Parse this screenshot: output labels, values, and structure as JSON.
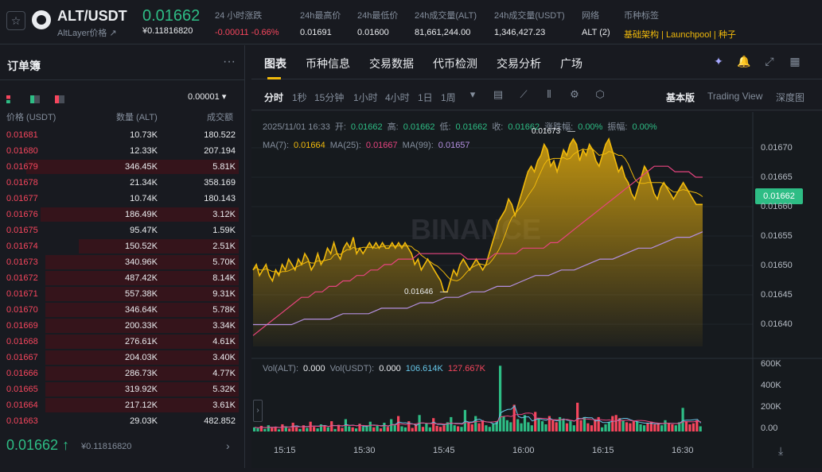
{
  "header": {
    "star_icon": "star-icon",
    "pair": "ALT/USDT",
    "pair_sub": "AltLayer价格 ↗",
    "price": "0.01662",
    "price_usd": "¥0.11816820",
    "stats": [
      {
        "label": "24 小时涨跌",
        "value": "-0.00011 -0.66%",
        "color": "red"
      },
      {
        "label": "24h最高价",
        "value": "0.01691",
        "color": ""
      },
      {
        "label": "24h最低价",
        "value": "0.01600",
        "color": ""
      },
      {
        "label": "24h成交量(ALT)",
        "value": "81,661,244.00",
        "color": ""
      },
      {
        "label": "24h成交量(USDT)",
        "value": "1,346,427.23",
        "color": ""
      },
      {
        "label": "网络",
        "value": "ALT (2)",
        "color": ""
      },
      {
        "label": "币种标签",
        "value": "基础架构 | Launchpool | 种子",
        "color": "gold"
      }
    ]
  },
  "orderbook": {
    "title": "订单簿",
    "precision": "0.00001 ▾",
    "col_price": "价格 (USDT)",
    "col_qty": "数量 (ALT)",
    "col_total": "成交额",
    "asks": [
      {
        "price": "0.01681",
        "qty": "10.73K",
        "total": "180.522",
        "depth": 0.0
      },
      {
        "price": "0.01680",
        "qty": "12.33K",
        "total": "207.194",
        "depth": 0.0
      },
      {
        "price": "0.01679",
        "qty": "346.45K",
        "total": "5.81K",
        "depth": 0.89
      },
      {
        "price": "0.01678",
        "qty": "21.34K",
        "total": "358.169",
        "depth": 0.0
      },
      {
        "price": "0.01677",
        "qty": "10.74K",
        "total": "180.143",
        "depth": 0.0
      },
      {
        "price": "0.01676",
        "qty": "186.49K",
        "total": "3.12K",
        "depth": 0.83
      },
      {
        "price": "0.01675",
        "qty": "95.47K",
        "total": "1.59K",
        "depth": 0.0
      },
      {
        "price": "0.01674",
        "qty": "150.52K",
        "total": "2.51K",
        "depth": 0.67
      },
      {
        "price": "0.01673",
        "qty": "340.96K",
        "total": "5.70K",
        "depth": 0.81
      },
      {
        "price": "0.01672",
        "qty": "487.42K",
        "total": "8.14K",
        "depth": 0.81
      },
      {
        "price": "0.01671",
        "qty": "557.38K",
        "total": "9.31K",
        "depth": 0.81
      },
      {
        "price": "0.01670",
        "qty": "346.64K",
        "total": "5.78K",
        "depth": 0.81
      },
      {
        "price": "0.01669",
        "qty": "200.33K",
        "total": "3.34K",
        "depth": 0.81
      },
      {
        "price": "0.01668",
        "qty": "276.61K",
        "total": "4.61K",
        "depth": 0.81
      },
      {
        "price": "0.01667",
        "qty": "204.03K",
        "total": "3.40K",
        "depth": 0.81
      },
      {
        "price": "0.01666",
        "qty": "286.73K",
        "total": "4.77K",
        "depth": 0.81
      },
      {
        "price": "0.01665",
        "qty": "319.92K",
        "total": "5.32K",
        "depth": 0.81
      },
      {
        "price": "0.01664",
        "qty": "217.12K",
        "total": "3.61K",
        "depth": 0.81
      },
      {
        "price": "0.01663",
        "qty": "29.03K",
        "total": "482.852",
        "depth": 0.0
      }
    ],
    "last_price": "0.01662",
    "last_sub": "¥0.11816820"
  },
  "tabs": [
    "图表",
    "币种信息",
    "交易数据",
    "代币检测",
    "交易分析",
    "广场"
  ],
  "toolbar": {
    "intervals": [
      "分时",
      "1秒",
      "15分钟",
      "1小时",
      "4小时",
      "1日",
      "1周"
    ],
    "views": [
      "基本版",
      "Trading View",
      "深度图"
    ]
  },
  "chart_info": {
    "date": "2025/11/01 16:33",
    "open_label": "开:",
    "open": "0.01662",
    "high_label": "高:",
    "high": "0.01662",
    "low_label": "低:",
    "low": "0.01662",
    "close_label": "收:",
    "close": "0.01662",
    "chg_label": "涨跌幅:",
    "chg": "0.00%",
    "amp_label": "振幅:",
    "amp": "0.00%",
    "ma7_label": "MA(7):",
    "ma7": "0.01664",
    "ma25_label": "MA(25):",
    "ma25": "0.01667",
    "ma99_label": "MA(99):",
    "ma99": "0.01657",
    "vol_alt_label": "Vol(ALT):",
    "vol_alt": "0.000",
    "vol_usdt_label": "Vol(USDT):",
    "vol_usdt": "0.000",
    "vol_ma1": "106.614K",
    "vol_ma2": "127.667K",
    "high_marker": "0.01673",
    "low_marker": "0.01646",
    "current": "0.01662",
    "watermark": "BINANCE"
  },
  "colors": {
    "up": "#2ebd85",
    "down": "#f6465d",
    "gold": "#f0b90b",
    "ma7": "#f0b90b",
    "ma25": "#e6447f",
    "ma99": "#b38fe0"
  },
  "chart_data": {
    "type": "area",
    "y_ticks": [
      "0.01670",
      "0.01665",
      "0.01660",
      "0.01655",
      "0.01650",
      "0.01645",
      "0.01640"
    ],
    "ylim": [
      0.01636,
      0.01675
    ],
    "x_ticks": [
      "15:15",
      "15:30",
      "15:45",
      "16:00",
      "16:15",
      "16:30"
    ],
    "vol_ticks": [
      "600K",
      "400K",
      "200K",
      "0.00"
    ],
    "price": [
      0.0165,
      0.01651,
      0.01649,
      0.0165,
      0.01651,
      0.01649,
      0.01648,
      0.0165,
      0.01649,
      0.01651,
      0.0165,
      0.01652,
      0.01651,
      0.0165,
      0.01652,
      0.01651,
      0.01653,
      0.01652,
      0.0165,
      0.01651,
      0.01653,
      0.01651,
      0.01652,
      0.01654,
      0.01653,
      0.01655,
      0.01653,
      0.01652,
      0.01654,
      0.01655,
      0.01654,
      0.01656,
      0.01653,
      0.01654,
      0.01653,
      0.01654,
      0.01655,
      0.01654,
      0.01655,
      0.01654,
      0.01655,
      0.01654,
      0.01654,
      0.01655,
      0.01654,
      0.01655,
      0.01654,
      0.01655,
      0.01654,
      0.01653,
      0.01651,
      0.01652,
      0.0165,
      0.01651,
      0.01652,
      0.01651,
      0.0165,
      0.01649,
      0.01648,
      0.01646,
      0.01646,
      0.01648,
      0.0165,
      0.01649,
      0.01651,
      0.01652,
      0.01651,
      0.0165,
      0.01651,
      0.01652,
      0.01651,
      0.0165,
      0.01651,
      0.01653,
      0.01655,
      0.01657,
      0.01659,
      0.0166,
      0.01661,
      0.01663,
      0.01662,
      0.0166,
      0.01662,
      0.01664,
      0.01666,
      0.01668,
      0.01669,
      0.01668,
      0.0167,
      0.01671,
      0.01673,
      0.01672,
      0.01669,
      0.0167,
      0.01668,
      0.0167,
      0.01672,
      0.01671,
      0.01673,
      0.01674,
      0.01673,
      0.0167,
      0.01672,
      0.01671,
      0.01673,
      0.01672,
      0.0167,
      0.01669,
      0.01671,
      0.01673,
      0.01674,
      0.01672,
      0.0167,
      0.01668,
      0.01669,
      0.01667,
      0.01666,
      0.01664,
      0.01663,
      0.01665,
      0.01667,
      0.01669,
      0.01668,
      0.01666,
      0.01664,
      0.01663,
      0.01665,
      0.01666,
      0.01665,
      0.01664,
      0.01663,
      0.01664,
      0.01665,
      0.01666,
      0.01665,
      0.01664,
      0.01663,
      0.01662,
      0.01662,
      0.01662
    ],
    "ma25": [
      0.01638,
      0.01639,
      0.0164,
      0.01641,
      0.01642,
      0.01643,
      0.01644,
      0.01645,
      0.01645,
      0.01646,
      0.01646,
      0.01647,
      0.01647,
      0.01648,
      0.01648,
      0.01649,
      0.01649,
      0.0165,
      0.0165,
      0.01651,
      0.01651,
      0.01652,
      0.01652,
      0.01652,
      0.01653,
      0.01653,
      0.01653,
      0.01653,
      0.01653,
      0.01653,
      0.01653,
      0.01652,
      0.01652,
      0.01652,
      0.01652,
      0.01653,
      0.01653,
      0.01653,
      0.01653,
      0.01654,
      0.01654,
      0.01654,
      0.01654,
      0.01655,
      0.01655,
      0.01656,
      0.01657,
      0.01658,
      0.01659,
      0.0166,
      0.01661,
      0.01662,
      0.01663,
      0.01664,
      0.01665,
      0.01666,
      0.01667,
      0.01668,
      0.01669,
      0.01669,
      0.01669,
      0.01668,
      0.01668,
      0.01668,
      0.01667,
      0.01667
    ],
    "ma99": [
      0.0164,
      0.0164,
      0.0164,
      0.0164,
      0.01641,
      0.01641,
      0.01641,
      0.01642,
      0.01642,
      0.01642,
      0.01643,
      0.01643,
      0.01643,
      0.01644,
      0.01644,
      0.01645,
      0.01645,
      0.01646,
      0.01646,
      0.01647,
      0.01647,
      0.01648,
      0.01649,
      0.01649,
      0.0165,
      0.0165,
      0.01651,
      0.01652,
      0.01652,
      0.01653,
      0.01654,
      0.01654,
      0.01655,
      0.01656,
      0.01656,
      0.01657
    ],
    "volume": [
      40,
      30,
      55,
      25,
      60,
      35,
      45,
      20,
      70,
      50,
      30,
      85,
      40,
      25,
      60,
      35,
      95,
      45,
      30,
      70,
      55,
      40,
      100,
      25,
      65,
      35,
      120,
      50,
      40,
      30,
      75,
      45,
      60,
      95,
      40,
      55,
      30,
      85,
      45,
      120,
      60,
      150,
      50,
      40,
      100,
      35,
      70,
      160,
      45,
      80,
      40,
      130,
      55,
      45,
      60,
      90,
      140,
      60,
      50,
      45,
      210,
      90,
      70,
      150,
      80,
      110,
      60,
      45,
      75,
      95,
      640,
      150,
      110,
      90,
      260,
      120,
      80,
      160,
      90,
      60,
      190,
      130,
      100,
      70,
      150,
      110,
      90,
      140,
      120,
      80,
      100,
      60,
      280,
      110,
      140,
      80,
      60,
      120,
      140,
      40,
      70,
      90,
      150,
      160,
      130,
      110,
      90,
      80,
      100,
      95,
      70,
      60,
      80,
      95,
      70,
      75,
      60,
      110,
      85,
      70,
      60,
      90,
      230,
      100,
      70,
      80,
      110,
      50
    ],
    "volume_ylim": [
      0,
      650
    ]
  }
}
